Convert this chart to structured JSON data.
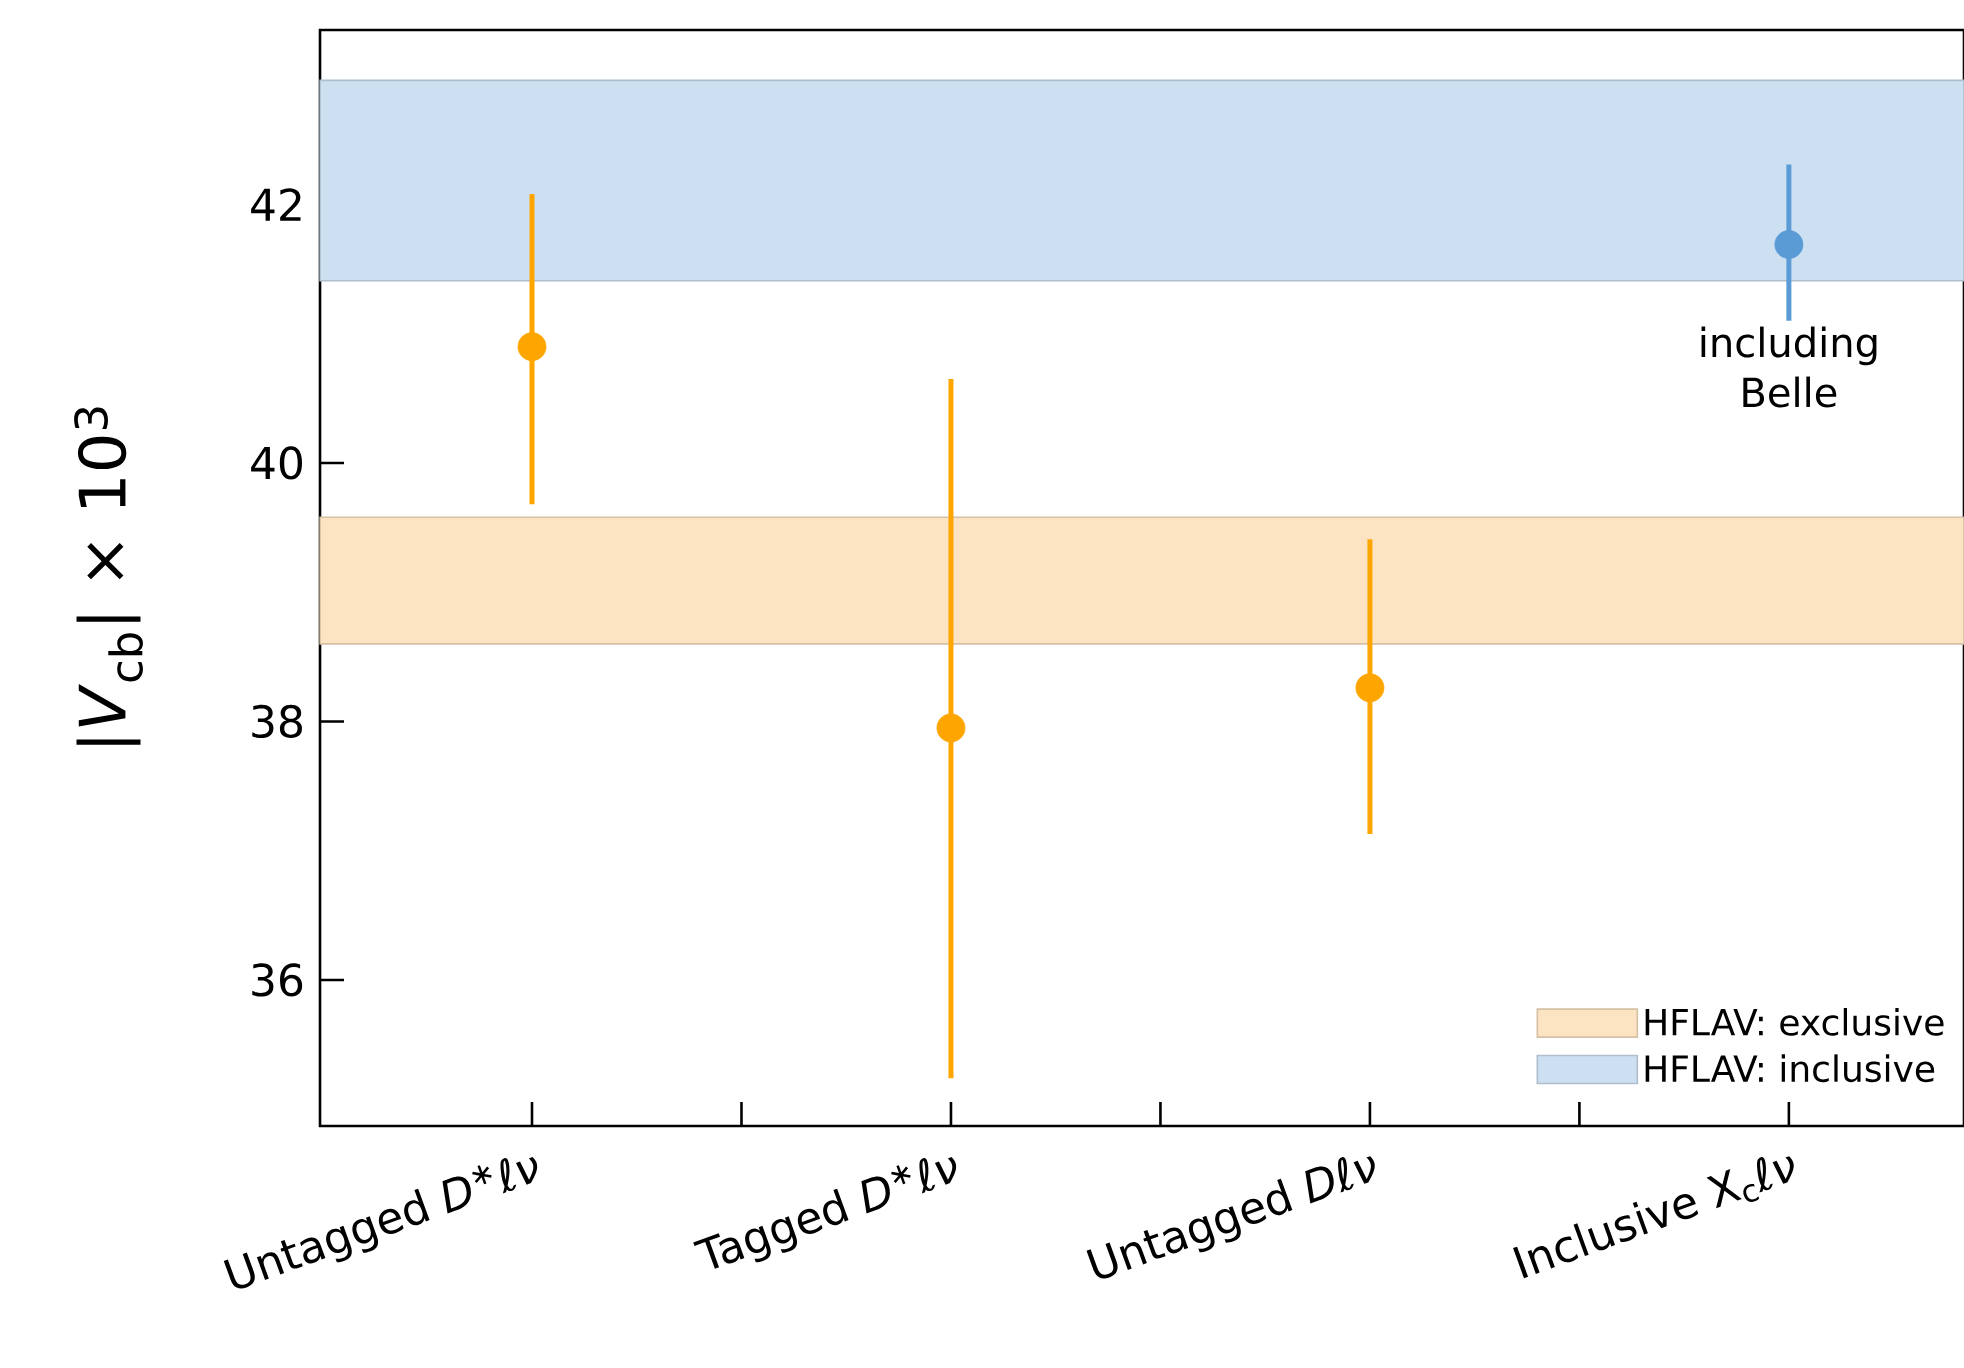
{
  "chart_data": {
    "type": "scatter",
    "ylabel": "|*V*$_{cb}$| × 10$^{3}$",
    "categories": [
      "Untagged *D*$^{∗}$*ℓν*",
      "Tagged *D*$^{∗}$*ℓν*",
      "Untagged *Dℓν*",
      "Inclusive X$_{c}$*ℓν*"
    ],
    "values": [
      40.9,
      37.95,
      38.26,
      41.69
    ],
    "errors": [
      [
        39.68,
        42.08
      ],
      [
        35.24,
        40.65
      ],
      [
        37.13,
        39.41
      ],
      [
        41.1,
        42.31
      ]
    ],
    "colors": [
      "#ffa500",
      "#ffa500",
      "#ffa500",
      "#5b9bd5"
    ],
    "marker": "circle",
    "ylim": [
      34.87,
      43.35
    ],
    "yticks": [
      36,
      38,
      40,
      42
    ],
    "bands": [
      {
        "axis": "y",
        "from": 38.6,
        "to": 39.58,
        "label": "HFLAV: exclusive",
        "color": "#fce3c2"
      },
      {
        "axis": "y",
        "from": 41.41,
        "to": 42.96,
        "label": "HFLAV: inclusive",
        "color": "#cde0f1"
      }
    ],
    "annotations": [
      "including Belle"
    ],
    "legend": "bottom right",
    "grid": false
  }
}
